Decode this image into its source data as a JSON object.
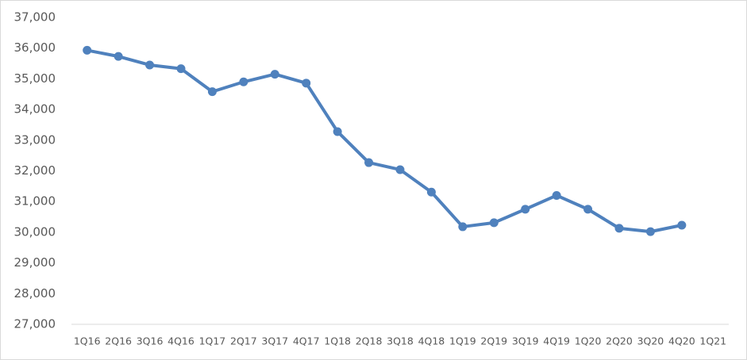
{
  "chart_data": {
    "type": "line",
    "categories": [
      "1Q16",
      "2Q16",
      "3Q16",
      "4Q16",
      "1Q17",
      "2Q17",
      "3Q17",
      "4Q17",
      "1Q18",
      "2Q18",
      "3Q18",
      "4Q18",
      "1Q19",
      "2Q19",
      "3Q19",
      "4Q19",
      "1Q20",
      "2Q20",
      "3Q20",
      "4Q20",
      "1Q21"
    ],
    "values": [
      35930,
      35730,
      35450,
      35330,
      34580,
      34900,
      35150,
      34860,
      33280,
      32270,
      32040,
      31310,
      30180,
      30310,
      30750,
      31200,
      30750,
      30130,
      30020,
      30230,
      null
    ],
    "color": "#4f81bd",
    "ylim": [
      27000,
      37000
    ],
    "yticks": [
      {
        "value": 27000,
        "label": "27,000"
      },
      {
        "value": 28000,
        "label": "28,000"
      },
      {
        "value": 29000,
        "label": "29,000"
      },
      {
        "value": 30000,
        "label": "30,000"
      },
      {
        "value": 31000,
        "label": "31,000"
      },
      {
        "value": 32000,
        "label": "32,000"
      },
      {
        "value": 33000,
        "label": "33,000"
      },
      {
        "value": 34000,
        "label": "34,000"
      },
      {
        "value": 35000,
        "label": "35,000"
      },
      {
        "value": 36000,
        "label": "36,000"
      },
      {
        "value": 37000,
        "label": "37,000"
      }
    ],
    "grid": false
  }
}
